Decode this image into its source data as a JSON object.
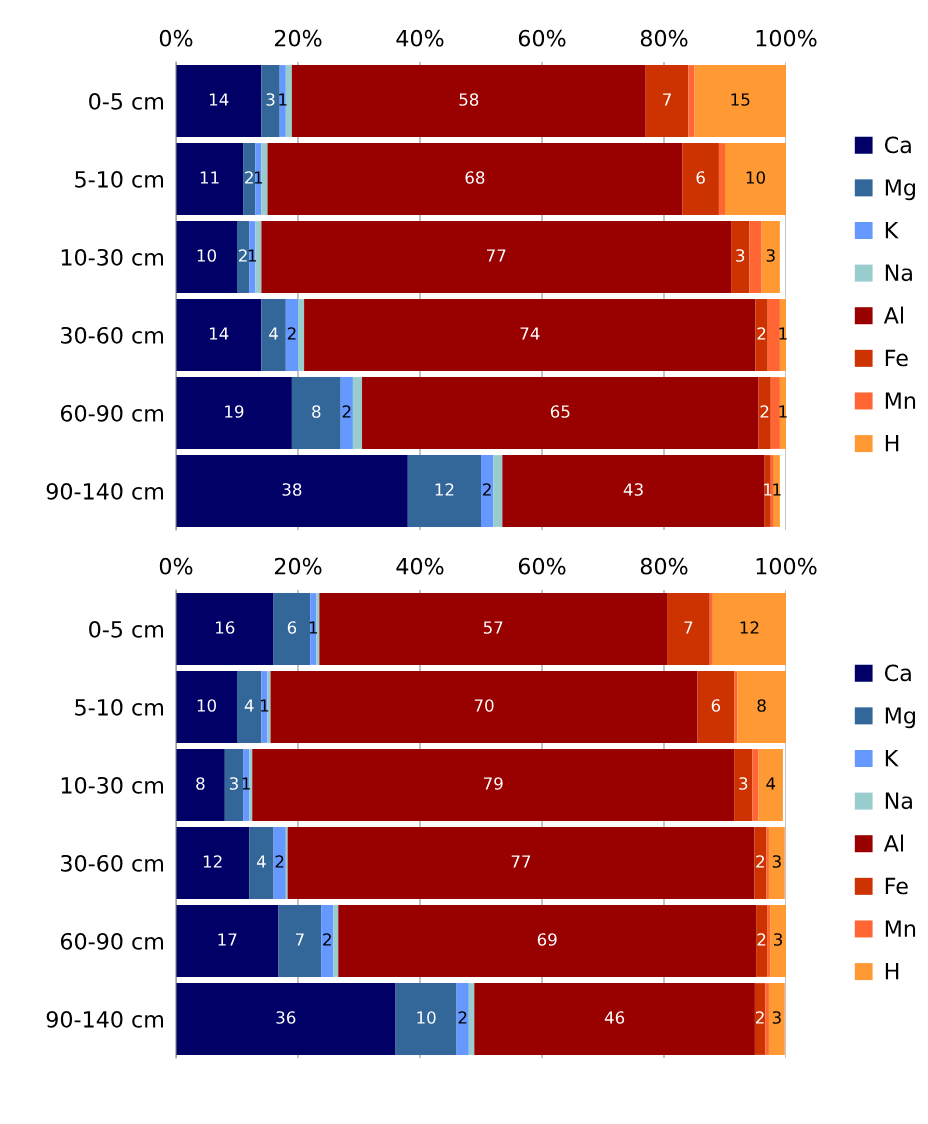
{
  "chart_data": [
    {
      "type": "bar",
      "orientation": "horizontal",
      "stacked": true,
      "grid": "x",
      "legend": "right",
      "xlim": [
        0,
        100
      ],
      "xticks": [
        {
          "value": 0,
          "label": "0%"
        },
        {
          "value": 20,
          "label": "20%"
        },
        {
          "value": 40,
          "label": "40%"
        },
        {
          "value": 60,
          "label": "60%"
        },
        {
          "value": 80,
          "label": "80%"
        },
        {
          "value": 100,
          "label": "100%"
        }
      ],
      "categories": [
        "0-5 cm",
        "5-10 cm",
        "10-30 cm",
        "30-60 cm",
        "60-90 cm",
        "90-140 cm"
      ],
      "series": [
        {
          "name": "Ca",
          "color": "#000066",
          "values": [
            14,
            11,
            10,
            14,
            19,
            38
          ],
          "value_labels": [
            "14",
            "11",
            "10",
            "14",
            "19",
            "38"
          ]
        },
        {
          "name": "Mg",
          "color": "#336699",
          "values": [
            3,
            2,
            2,
            4,
            8,
            12
          ],
          "value_labels": [
            "3",
            "2",
            "2",
            "4",
            "8",
            "12"
          ]
        },
        {
          "name": "K",
          "color": "#6699ff",
          "values": [
            1,
            1,
            1,
            2,
            2,
            2
          ],
          "value_labels": [
            "1",
            "1",
            "1",
            "2",
            "2",
            "2"
          ]
        },
        {
          "name": "Na",
          "color": "#99cccc",
          "values": [
            1,
            1,
            1,
            1,
            1.5,
            1.5
          ],
          "value_labels": [
            null,
            null,
            null,
            null,
            null,
            null
          ]
        },
        {
          "name": "Al",
          "color": "#990000",
          "values": [
            58,
            68,
            77,
            74,
            65,
            43
          ],
          "value_labels": [
            "58",
            "68",
            "77",
            "74",
            "65",
            "43"
          ]
        },
        {
          "name": "Fe",
          "color": "#cc3300",
          "values": [
            7,
            6,
            3,
            2,
            2,
            1
          ],
          "value_labels": [
            "7",
            "6",
            "3",
            "2",
            "2",
            "1"
          ]
        },
        {
          "name": "Mn",
          "color": "#ff6633",
          "values": [
            1,
            1,
            2,
            2,
            1.5,
            0.5
          ],
          "value_labels": [
            null,
            null,
            null,
            null,
            null,
            null
          ]
        },
        {
          "name": "H",
          "color": "#ff9933",
          "values": [
            15,
            10,
            3,
            1,
            1,
            1
          ],
          "value_labels": [
            "15",
            "10",
            "3",
            "1",
            "1",
            "1"
          ]
        }
      ]
    },
    {
      "type": "bar",
      "orientation": "horizontal",
      "stacked": true,
      "grid": "x",
      "legend": "right",
      "xlim": [
        0,
        100
      ],
      "xticks": [
        {
          "value": 0,
          "label": "0%"
        },
        {
          "value": 20,
          "label": "20%"
        },
        {
          "value": 40,
          "label": "40%"
        },
        {
          "value": 60,
          "label": "60%"
        },
        {
          "value": 80,
          "label": "80%"
        },
        {
          "value": 100,
          "label": "100%"
        }
      ],
      "categories": [
        "0-5 cm",
        "5-10 cm",
        "10-30 cm",
        "30-60 cm",
        "60-90 cm",
        "90-140 cm"
      ],
      "series": [
        {
          "name": "Ca",
          "color": "#000066",
          "values": [
            16,
            10,
            8,
            12,
            16.8,
            36
          ],
          "value_labels": [
            "16",
            "10",
            "8",
            "12",
            "17",
            "36"
          ]
        },
        {
          "name": "Mg",
          "color": "#336699",
          "values": [
            6,
            4,
            3,
            4,
            7,
            10
          ],
          "value_labels": [
            "6",
            "4",
            "3",
            "4",
            "7",
            "10"
          ]
        },
        {
          "name": "K",
          "color": "#6699ff",
          "values": [
            1,
            1,
            1,
            2,
            2,
            2
          ],
          "value_labels": [
            "1",
            "1",
            "1",
            "2",
            "2",
            "2"
          ]
        },
        {
          "name": "Na",
          "color": "#99cccc",
          "values": [
            0.5,
            0.5,
            0.5,
            0.3,
            0.8,
            0.9
          ],
          "value_labels": [
            null,
            null,
            null,
            null,
            null,
            null
          ]
        },
        {
          "name": "Al",
          "color": "#990000",
          "values": [
            57,
            70,
            79,
            76.5,
            68.5,
            46
          ],
          "value_labels": [
            "57",
            "70",
            "79",
            "77",
            "69",
            "46"
          ]
        },
        {
          "name": "Fe",
          "color": "#cc3300",
          "values": [
            7,
            6,
            3,
            2,
            1.8,
            1.7
          ],
          "value_labels": [
            "7",
            "6",
            "3",
            "2",
            "2",
            "2"
          ]
        },
        {
          "name": "Mn",
          "color": "#ff6633",
          "values": [
            0.5,
            0.5,
            1,
            0.4,
            0.5,
            0.6
          ],
          "value_labels": [
            null,
            null,
            null,
            null,
            null,
            null
          ]
        },
        {
          "name": "H",
          "color": "#ff9933",
          "values": [
            12,
            8,
            4,
            2.6,
            2.6,
            2.6
          ],
          "value_labels": [
            "12",
            "8",
            "4",
            "3",
            "3",
            "3"
          ]
        }
      ]
    }
  ]
}
